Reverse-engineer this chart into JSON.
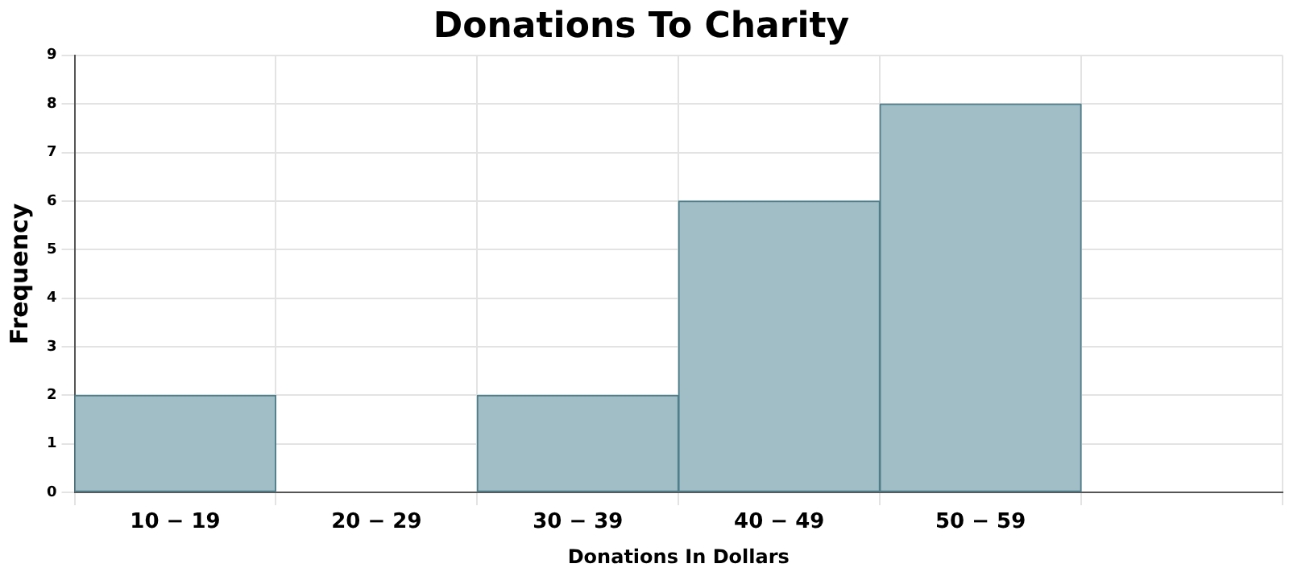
{
  "chart_data": {
    "type": "bar",
    "title": "Donations To Charity",
    "xlabel": "Donations In Dollars",
    "ylabel": "Frequency",
    "categories": [
      "10 − 19",
      "20 − 29",
      "30 − 39",
      "40 − 49",
      "50 − 59",
      null
    ],
    "values": [
      2,
      0,
      2,
      6,
      8,
      null
    ],
    "color": "#a1bec6",
    "ylim": [
      0,
      9
    ],
    "yticks": [
      0,
      1,
      2,
      3,
      4,
      5,
      6,
      7,
      8,
      9
    ],
    "grid": true,
    "legend": false
  }
}
